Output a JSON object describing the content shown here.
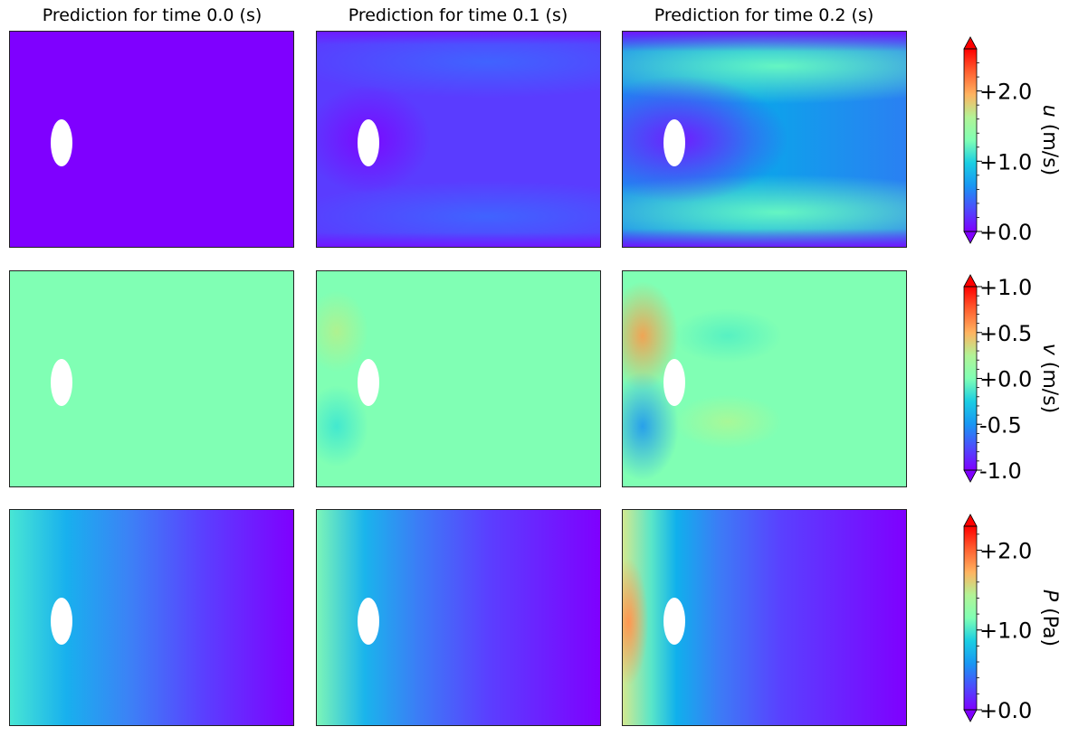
{
  "chart_data": {
    "type": "heatmap",
    "column_titles": [
      "Prediction for time 0.0 (s)",
      "Prediction for time 0.1 (s)",
      "Prediction for time 0.2 (s)"
    ],
    "times": [
      0.0,
      0.1,
      0.2
    ],
    "colormap": "rainbow",
    "fields": [
      {
        "key": "u",
        "symbol": "u",
        "unit": " (m/s)",
        "range": [
          0.0,
          2.6
        ],
        "ticks": [
          "+0.0",
          "+1.0",
          "+2.0"
        ],
        "tick_values": [
          0.0,
          1.0,
          2.0
        ],
        "minor_step": 0.2
      },
      {
        "key": "v",
        "symbol": "v",
        "unit": " (m/s)",
        "range": [
          -1.0,
          1.0
        ],
        "ticks": [
          "-1.0",
          "-0.5",
          "+0.0",
          "+0.5",
          "+1.0"
        ],
        "tick_values": [
          -1.0,
          -0.5,
          0.0,
          0.5,
          1.0
        ],
        "minor_step": 0.1
      },
      {
        "key": "P",
        "symbol": "P",
        "unit": " (Pa)",
        "range": [
          0.0,
          2.3
        ],
        "ticks": [
          "+0.0",
          "+1.0",
          "+2.0"
        ],
        "tick_values": [
          0.0,
          1.0,
          2.0
        ],
        "minor_step": 0.2
      }
    ],
    "colors": {
      "low": "#7f00ff",
      "mid": "#80ffb4",
      "high": "#ff0000",
      "obstacle": "#ffffff"
    }
  }
}
